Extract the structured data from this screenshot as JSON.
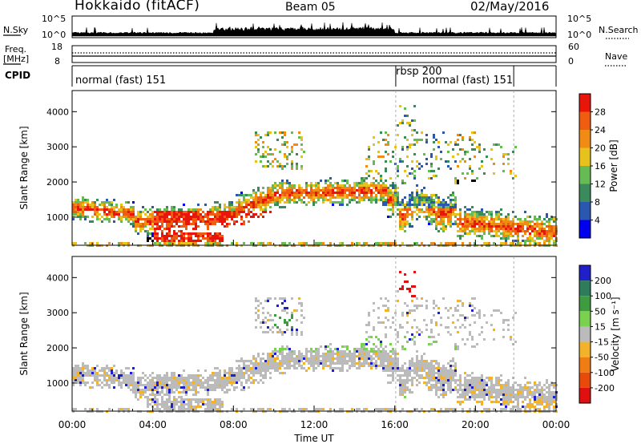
{
  "header": {
    "title": "Hokkaido (fitACF)",
    "beam": "Beam 05",
    "date": "02/May/2016"
  },
  "noise_panel": {
    "left_label": "N.Sky",
    "right_label": "N.Search",
    "left_ticks": [
      "10^5",
      "10^0"
    ],
    "right_ticks": [
      "10^5",
      "10^0"
    ]
  },
  "freq_panel": {
    "left_label_1": "Freq.",
    "left_label_2": "[MHz]",
    "left_ticks": [
      "18",
      "8"
    ],
    "right_label": "Nave",
    "right_ticks": [
      "60",
      "0"
    ]
  },
  "cpid_panel": {
    "label": "CPID",
    "segments": [
      "normal (fast) 151",
      "rbsp 200",
      "normal (fast) 151"
    ]
  },
  "x_axis": {
    "label": "Time UT",
    "ticks": [
      "00:00",
      "04:00",
      "08:00",
      "12:00",
      "16:00",
      "20:00",
      "00:00"
    ]
  },
  "colors": {
    "power_scale": [
      "#0000ee",
      "#2a58b0",
      "#3b8a5c",
      "#66bb55",
      "#e7c21d",
      "#f08c14",
      "#f05c10",
      "#e8150b"
    ],
    "velocity_scale": [
      "#2020c8",
      "#2e7c5c",
      "#3f9b3f",
      "#7ad04f",
      "#bbbbbb",
      "#f2b22a",
      "#f07d14",
      "#e84a0c",
      "#e01010"
    ]
  },
  "chart_data": [
    {
      "type": "heatmap",
      "panel": "power",
      "ylabel": "Slant Range [km]",
      "yticks": [
        "1000",
        "2000",
        "3000",
        "4000"
      ],
      "ylim": [
        200,
        4600
      ],
      "xlim_hours": [
        0,
        24
      ],
      "colorbar_label": "Power [dB]",
      "colorbar_ticks": [
        "4",
        "8",
        "12",
        "16",
        "20",
        "24",
        "28"
      ],
      "colorbar_range": [
        0,
        32
      ]
    },
    {
      "type": "heatmap",
      "panel": "velocity",
      "ylabel": "Slant Range [km]",
      "yticks": [
        "1000",
        "2000",
        "3000",
        "4000"
      ],
      "ylim": [
        200,
        4600
      ],
      "xlim_hours": [
        0,
        24
      ],
      "colorbar_label": "Velocity [m s⁻¹]",
      "colorbar_ticks": [
        "200",
        "100",
        "50",
        "15",
        "-15",
        "-50",
        "-100",
        "-200"
      ]
    }
  ]
}
